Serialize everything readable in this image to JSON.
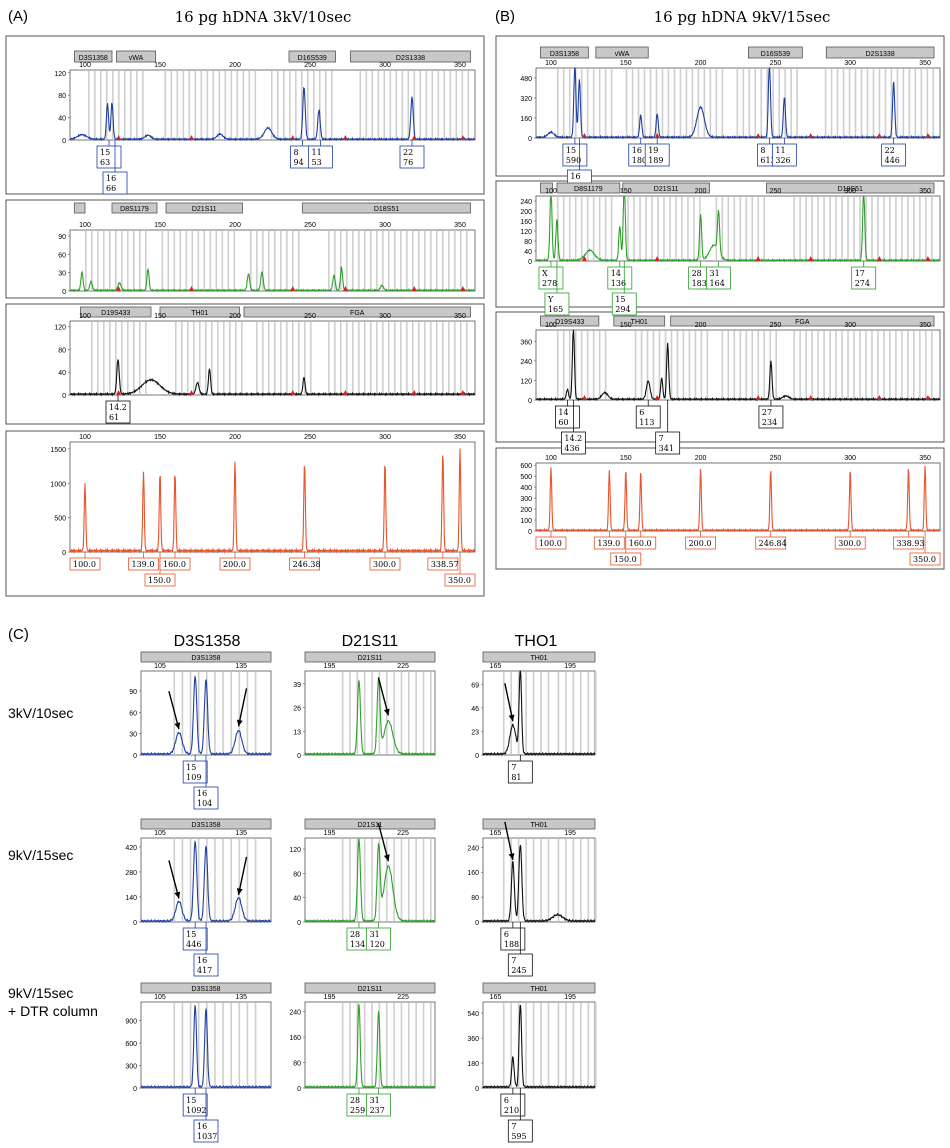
{
  "panels": {
    "A": {
      "letter": "(A)",
      "title": "16 pg hDNA 3kV/10sec"
    },
    "B": {
      "letter": "(B)",
      "title": "16 pg hDNA 9kV/15sec"
    },
    "C": {
      "letter": "(C)"
    }
  },
  "row_labels": [
    "3kV/10sec",
    "9kV/15sec",
    "9kV/15sec",
    "+ DTR column"
  ],
  "locus_headers": [
    "D3S1358",
    "D21S11",
    "THO1"
  ],
  "chart_data": [
    {
      "id": "A1",
      "type": "line",
      "color": "#1f3fa6",
      "xlim": [
        90,
        360
      ],
      "ylim": [
        0,
        125
      ],
      "x_ticks": [
        100,
        150,
        200,
        250,
        300,
        350
      ],
      "y_ticks": [
        0,
        40,
        80,
        120
      ],
      "markers": [
        "D3S1358",
        "vWA",
        "D16S539",
        "D2S1338"
      ],
      "peaks": [
        [
          98,
          8,
          3
        ],
        [
          115,
          63,
          0.7
        ],
        [
          118,
          66,
          0.7
        ],
        [
          142,
          7,
          2
        ],
        [
          190,
          9,
          2
        ],
        [
          222,
          20,
          2.5
        ],
        [
          246,
          94,
          0.8
        ],
        [
          256,
          53,
          0.8
        ],
        [
          318,
          76,
          0.8
        ]
      ],
      "alleles": [
        [
          "15",
          "63"
        ],
        [
          "16",
          "66"
        ],
        [
          "8",
          "94"
        ],
        [
          "11",
          "53"
        ],
        [
          "22",
          "76"
        ]
      ]
    },
    {
      "id": "A2",
      "type": "line",
      "color": "#2ea02a",
      "xlim": [
        90,
        360
      ],
      "ylim": [
        0,
        100
      ],
      "x_ticks": [
        100,
        150,
        200,
        250,
        300,
        350
      ],
      "y_ticks": [
        0,
        30,
        60,
        90
      ],
      "markers": [
        "",
        "D8S1179",
        "D21S11",
        "D18S51"
      ],
      "peaks": [
        [
          98,
          30,
          0.7
        ],
        [
          104,
          15,
          0.8
        ],
        [
          123,
          12,
          1
        ],
        [
          142,
          35,
          0.7
        ],
        [
          209,
          27,
          0.8
        ],
        [
          218,
          30,
          0.8
        ],
        [
          266,
          25,
          0.8
        ],
        [
          271,
          38,
          0.7
        ],
        [
          298,
          8,
          1
        ]
      ],
      "alleles": []
    },
    {
      "id": "A3",
      "type": "line",
      "color": "#111111",
      "xlim": [
        90,
        360
      ],
      "ylim": [
        0,
        130
      ],
      "x_ticks": [
        100,
        150,
        200,
        250,
        300,
        350
      ],
      "y_ticks": [
        0,
        40,
        80,
        120
      ],
      "markers": [
        "D19S433",
        "TH01",
        "FGA"
      ],
      "peaks": [
        [
          122,
          61,
          0.8
        ],
        [
          144,
          25,
          6
        ],
        [
          175,
          20,
          1
        ],
        [
          183,
          45,
          0.7
        ],
        [
          246,
          30,
          0.7
        ]
      ],
      "alleles": [
        [
          "14.2",
          "61"
        ]
      ]
    },
    {
      "id": "A4",
      "type": "line",
      "color": "#e8542c",
      "xlim": [
        90,
        360
      ],
      "ylim": [
        0,
        1600
      ],
      "x_ticks": [
        100,
        150,
        200,
        250,
        300,
        350
      ],
      "y_ticks": [
        0,
        500,
        1000,
        1500
      ],
      "markers": [],
      "peaks": [
        [
          100,
          1000,
          0.5
        ],
        [
          139,
          1150,
          0.5
        ],
        [
          150,
          1150,
          0.5
        ],
        [
          160,
          1150,
          0.5
        ],
        [
          200,
          1300,
          0.5
        ],
        [
          246.38,
          1300,
          0.5
        ],
        [
          300,
          1300,
          0.5
        ],
        [
          338.57,
          1450,
          0.5
        ],
        [
          350,
          1500,
          0.5
        ]
      ],
      "alleles": [
        [
          "100.0"
        ],
        [
          "139.0"
        ],
        [
          "150.0"
        ],
        [
          "160.0"
        ],
        [
          "200.0"
        ],
        [
          "246.38"
        ],
        [
          "300.0"
        ],
        [
          "338.57"
        ],
        [
          "350.0"
        ]
      ]
    },
    {
      "id": "B1",
      "type": "line",
      "color": "#1f3fa6",
      "xlim": [
        90,
        360
      ],
      "ylim": [
        0,
        560
      ],
      "x_ticks": [
        100,
        150,
        200,
        250,
        300,
        350
      ],
      "y_ticks": [
        0,
        160,
        320,
        480
      ],
      "markers": [
        "D3S1358",
        "vWA",
        "D16S539",
        "D2S1338"
      ],
      "peaks": [
        [
          100,
          40,
          2
        ],
        [
          116,
          590,
          0.7
        ],
        [
          119,
          465,
          0.7
        ],
        [
          160,
          180,
          0.7
        ],
        [
          171,
          189,
          0.7
        ],
        [
          200,
          240,
          2.5
        ],
        [
          246,
          613,
          0.7
        ],
        [
          256,
          326,
          0.7
        ],
        [
          329,
          446,
          0.7
        ]
      ],
      "alleles": [
        [
          "15",
          "590"
        ],
        [
          "16",
          "465"
        ],
        [
          "16",
          "180"
        ],
        [
          "19",
          "189"
        ],
        [
          "8",
          "613"
        ],
        [
          "11",
          "326"
        ],
        [
          "22",
          "446"
        ]
      ]
    },
    {
      "id": "B2",
      "type": "line",
      "color": "#2ea02a",
      "xlim": [
        90,
        360
      ],
      "ylim": [
        0,
        260
      ],
      "x_ticks": [
        100,
        150,
        200,
        250,
        300,
        350
      ],
      "y_ticks": [
        0,
        40,
        80,
        120,
        160,
        200,
        240
      ],
      "markers": [
        "",
        "D8S1179",
        "D21S11",
        "D18S51"
      ],
      "peaks": [
        [
          100,
          278,
          0.7
        ],
        [
          104,
          165,
          0.7
        ],
        [
          126,
          40,
          3
        ],
        [
          146,
          136,
          0.7
        ],
        [
          149,
          294,
          0.7
        ],
        [
          200,
          183,
          0.7
        ],
        [
          212,
          164,
          0.7
        ],
        [
          209,
          60,
          3
        ],
        [
          309,
          274,
          0.7
        ]
      ],
      "alleles": [
        [
          "X",
          "278"
        ],
        [
          "Y",
          "165"
        ],
        [
          "14",
          "136"
        ],
        [
          "15",
          "294"
        ],
        [
          "28",
          "183"
        ],
        [
          "31",
          "164"
        ],
        [
          "17",
          "274"
        ]
      ]
    },
    {
      "id": "B3",
      "type": "line",
      "color": "#111111",
      "xlim": [
        90,
        360
      ],
      "ylim": [
        0,
        430
      ],
      "x_ticks": [
        100,
        150,
        200,
        250,
        300,
        350
      ],
      "y_ticks": [
        0,
        120,
        240,
        360
      ],
      "markers": [
        "D19S433",
        "TH01",
        "FGA"
      ],
      "peaks": [
        [
          111,
          60,
          0.7
        ],
        [
          115,
          436,
          0.7
        ],
        [
          136,
          40,
          2
        ],
        [
          165,
          113,
          1.2
        ],
        [
          174,
          130,
          0.7
        ],
        [
          178,
          341,
          0.7
        ],
        [
          247,
          234,
          0.7
        ],
        [
          257,
          20,
          2
        ]
      ],
      "alleles": [
        [
          "14",
          "60"
        ],
        [
          "14.2",
          "436"
        ],
        [
          "6",
          "113"
        ],
        [
          "7",
          "341"
        ],
        [
          "27",
          "234"
        ]
      ]
    },
    {
      "id": "B4",
      "type": "line",
      "color": "#e8542c",
      "xlim": [
        90,
        360
      ],
      "ylim": [
        0,
        620
      ],
      "x_ticks": [
        100,
        150,
        200,
        250,
        300,
        350
      ],
      "y_ticks": [
        0,
        100,
        200,
        300,
        400,
        500,
        600
      ],
      "markers": [],
      "peaks": [
        [
          100,
          580,
          0.5
        ],
        [
          139,
          550,
          0.5
        ],
        [
          150,
          560,
          0.5
        ],
        [
          160,
          550,
          0.5
        ],
        [
          200,
          560,
          0.5
        ],
        [
          246.84,
          560,
          0.5
        ],
        [
          300,
          560,
          0.5
        ],
        [
          338.93,
          580,
          0.5
        ],
        [
          350,
          590,
          0.5
        ]
      ],
      "alleles": [
        [
          "100.0"
        ],
        [
          "139.0"
        ],
        [
          "150.0"
        ],
        [
          "160.0"
        ],
        [
          "200.0"
        ],
        [
          "246.84"
        ],
        [
          "300.0"
        ],
        [
          "338.93"
        ],
        [
          "350.0"
        ]
      ]
    },
    {
      "id": "C11",
      "type": "line",
      "color": "#1f3fa6",
      "xlim": [
        98,
        146
      ],
      "ylim": [
        0,
        118
      ],
      "x_ticks": [
        105,
        135
      ],
      "y_ticks": [
        0,
        30,
        60,
        90
      ],
      "markers": [
        "D3S1358"
      ],
      "peaks": [
        [
          112,
          30,
          1.2
        ],
        [
          118,
          109,
          0.6
        ],
        [
          122,
          104,
          0.6
        ],
        [
          134,
          33,
          1.2
        ]
      ],
      "alleles": [
        [
          "15",
          "109"
        ],
        [
          "16",
          "104"
        ]
      ]
    },
    {
      "id": "C12",
      "type": "line",
      "color": "#2ea02a",
      "xlim": [
        185,
        238
      ],
      "ylim": [
        0,
        46
      ],
      "x_ticks": [
        195,
        225
      ],
      "y_ticks": [
        0,
        13,
        26,
        39
      ],
      "markers": [
        "D21S11"
      ],
      "peaks": [
        [
          207,
          40,
          0.6
        ],
        [
          215,
          40,
          0.6
        ],
        [
          219,
          18,
          1.8
        ]
      ],
      "alleles": []
    },
    {
      "id": "C13",
      "type": "line",
      "color": "#111111",
      "xlim": [
        160,
        205
      ],
      "ylim": [
        0,
        82
      ],
      "x_ticks": [
        165,
        195
      ],
      "y_ticks": [
        0,
        23,
        46,
        69
      ],
      "markers": [
        "TH01"
      ],
      "peaks": [
        [
          172,
          28,
          1.2
        ],
        [
          175,
          81,
          0.5
        ]
      ],
      "alleles": [
        [
          "7",
          "81"
        ]
      ]
    },
    {
      "id": "C21",
      "type": "line",
      "color": "#1f3fa6",
      "xlim": [
        98,
        146
      ],
      "ylim": [
        0,
        470
      ],
      "x_ticks": [
        105,
        135
      ],
      "y_ticks": [
        0,
        140,
        280,
        420
      ],
      "markers": [
        "D3S1358"
      ],
      "peaks": [
        [
          112,
          110,
          1.1
        ],
        [
          118,
          446,
          0.6
        ],
        [
          122,
          417,
          0.6
        ],
        [
          134,
          130,
          1.2
        ]
      ],
      "alleles": [
        [
          "15",
          "446"
        ],
        [
          "16",
          "417"
        ]
      ]
    },
    {
      "id": "C22",
      "type": "line",
      "color": "#2ea02a",
      "xlim": [
        185,
        238
      ],
      "ylim": [
        0,
        138
      ],
      "x_ticks": [
        195,
        225
      ],
      "y_ticks": [
        0,
        40,
        80,
        120
      ],
      "markers": [
        "D21S11"
      ],
      "peaks": [
        [
          207,
          134,
          0.6
        ],
        [
          215,
          120,
          0.6
        ],
        [
          219,
          90,
          1.8
        ]
      ],
      "alleles": [
        [
          "28",
          "134"
        ],
        [
          "31",
          "120"
        ]
      ]
    },
    {
      "id": "C23",
      "type": "line",
      "color": "#111111",
      "xlim": [
        160,
        205
      ],
      "ylim": [
        0,
        270
      ],
      "x_ticks": [
        165,
        195
      ],
      "y_ticks": [
        0,
        80,
        160,
        240
      ],
      "markers": [
        "TH01"
      ],
      "peaks": [
        [
          172,
          188,
          0.6
        ],
        [
          175,
          245,
          0.6
        ],
        [
          190,
          20,
          2
        ]
      ],
      "alleles": [
        [
          "6",
          "188"
        ],
        [
          "7",
          "245"
        ]
      ]
    },
    {
      "id": "C31",
      "type": "line",
      "color": "#1f3fa6",
      "xlim": [
        98,
        146
      ],
      "ylim": [
        0,
        1150
      ],
      "x_ticks": [
        105,
        135
      ],
      "y_ticks": [
        0,
        300,
        600,
        900
      ],
      "markers": [
        "D3S1358"
      ],
      "peaks": [
        [
          118,
          1092,
          0.5
        ],
        [
          122,
          1037,
          0.5
        ]
      ],
      "alleles": [
        [
          "15",
          "1092"
        ],
        [
          "16",
          "1037"
        ]
      ]
    },
    {
      "id": "C32",
      "type": "line",
      "color": "#2ea02a",
      "xlim": [
        185,
        238
      ],
      "ylim": [
        0,
        270
      ],
      "x_ticks": [
        195,
        225
      ],
      "y_ticks": [
        0,
        80,
        160,
        240
      ],
      "markers": [
        "D21S11"
      ],
      "peaks": [
        [
          207,
          259,
          0.5
        ],
        [
          215,
          237,
          0.5
        ]
      ],
      "alleles": [
        [
          "28",
          "259"
        ],
        [
          "31",
          "237"
        ]
      ]
    },
    {
      "id": "C33",
      "type": "line",
      "color": "#111111",
      "xlim": [
        160,
        205
      ],
      "ylim": [
        0,
        620
      ],
      "x_ticks": [
        165,
        195
      ],
      "y_ticks": [
        0,
        180,
        360,
        540
      ],
      "markers": [
        "TH01"
      ],
      "peaks": [
        [
          172,
          210,
          0.5
        ],
        [
          175,
          595,
          0.5
        ]
      ],
      "alleles": [
        [
          "6",
          "210"
        ],
        [
          "7",
          "595"
        ]
      ]
    }
  ]
}
